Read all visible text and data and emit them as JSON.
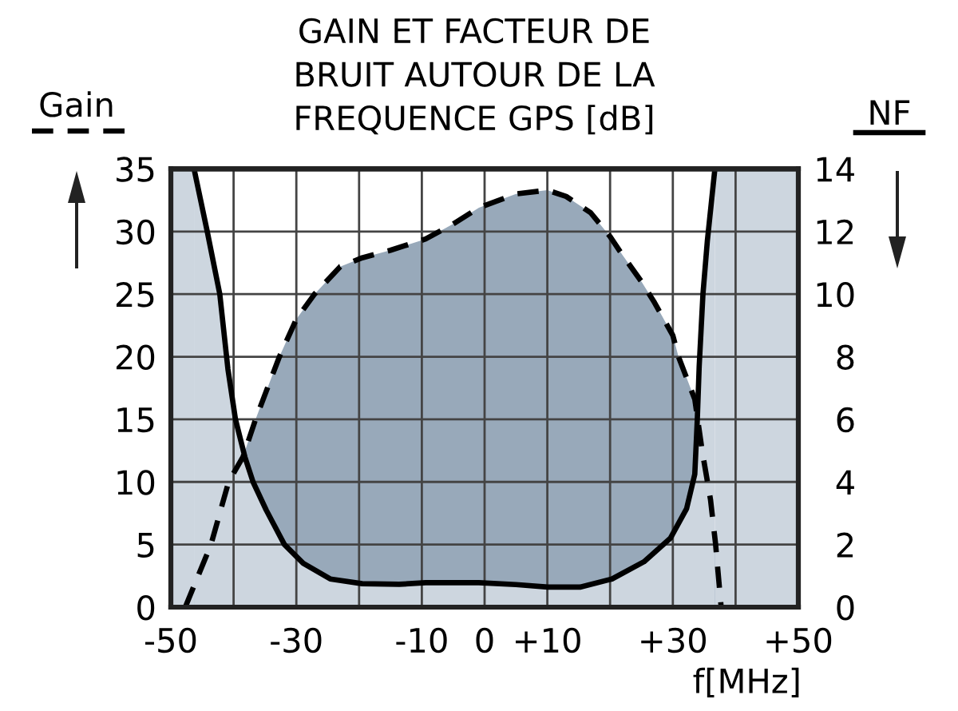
{
  "chart_data": {
    "type": "area",
    "title": "GAIN ET FACTEUR DE\nBRUIT AUTOUR DE LA\nFREQUENCE GPS [dB]",
    "xlabel": "f[MHz]",
    "ylabel": "Gain",
    "y2label": "NF",
    "xlim": [
      -50,
      50
    ],
    "xticks": [
      -50,
      {
        "value": -40,
        "label": null
      },
      -30,
      {
        "value": -20,
        "label": null
      },
      -10,
      0,
      {
        "value": 10,
        "label": "+10"
      },
      {
        "value": 20,
        "label": null
      },
      {
        "value": 30,
        "label": "+30"
      },
      {
        "value": 40,
        "label": null
      },
      {
        "value": 50,
        "label": "+50"
      }
    ],
    "ylim": [
      0,
      35
    ],
    "yticks": [
      0,
      5,
      10,
      15,
      20,
      25,
      30,
      35
    ],
    "y2lim": [
      0,
      14
    ],
    "y2ticks": [
      0,
      2,
      4,
      6,
      8,
      10,
      12,
      14
    ],
    "grid": true,
    "bands": [
      {
        "axis": "x",
        "from": -50,
        "to": -46.3,
        "color": "#cdd6df"
      },
      {
        "axis": "x",
        "from": 36.7,
        "to": 50,
        "color": "#cdd6df"
      }
    ],
    "series": [
      {
        "color": "#98a9ba",
        "line_style": "dashed",
        "x": [
          -47.7,
          -43.6,
          -40.8,
          -38.5,
          -36.5,
          -32.7,
          -30,
          -27.1,
          -23,
          -19.5,
          -15,
          -9.4,
          -5,
          -0.9,
          5,
          10,
          13,
          16.9,
          20,
          22,
          25,
          27.1,
          30,
          30.9,
          33.5,
          34.7,
          36,
          36.8,
          37.7
        ],
        "values": [
          0,
          5,
          10,
          12,
          15,
          20,
          23,
          25,
          27.2,
          27.9,
          28.5,
          29.4,
          30.6,
          31.9,
          33,
          33.3,
          32.8,
          31.5,
          29.6,
          28.1,
          26,
          24.3,
          21.7,
          20,
          16.6,
          12.4,
          8.6,
          5.1,
          0
        ]
      },
      {
        "color": "#cdd6df",
        "line_style": "solid",
        "axis": "y2",
        "x": [
          -46.3,
          -44.2,
          -42.2,
          -40.9,
          -39.7,
          -38.2,
          -36.9,
          -34.8,
          -31.9,
          -28.9,
          -24.6,
          -19.5,
          -13.6,
          -9.4,
          -0.9,
          5,
          10.1,
          15.2,
          20.3,
          25.4,
          29.6,
          32.2,
          33.5,
          33.9,
          34.2,
          34.8,
          35.5,
          36.7
        ],
        "values": [
          14,
          12,
          10,
          7.6,
          6,
          4.8,
          4,
          3.1,
          2,
          1.4,
          0.9,
          0.75,
          0.73,
          0.78,
          0.78,
          0.72,
          0.64,
          0.64,
          0.9,
          1.45,
          2.2,
          3.15,
          4.25,
          6,
          7.7,
          10,
          11.7,
          14
        ]
      }
    ]
  }
}
